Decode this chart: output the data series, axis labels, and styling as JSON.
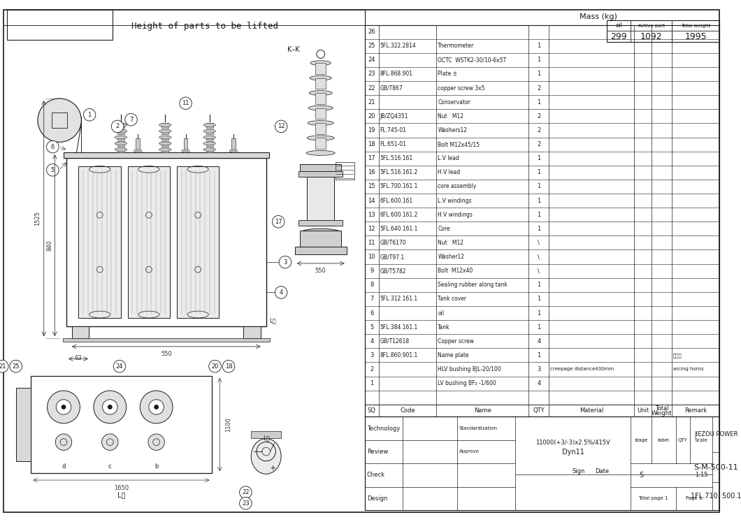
{
  "line_color": "#1a1a1a",
  "title": "Height of parts to be lifted",
  "mass_title": "Mass (kg)",
  "mass_headers": [
    "oil",
    "Active part",
    "Total weight"
  ],
  "mass_values": [
    "299",
    "1092",
    "1995"
  ],
  "bom_rows": [
    {
      "sq": "26",
      "code": "",
      "name": "",
      "qty": "",
      "material": ""
    },
    {
      "sq": "25",
      "code": "5FL.322.2814",
      "name": "Thermometer",
      "qty": "1",
      "material": ""
    },
    {
      "sq": "24",
      "code": "",
      "name": "OCTC  WSTK2-30/10-6x5T",
      "qty": "1",
      "material": ""
    },
    {
      "sq": "23",
      "code": "8FL.868.901",
      "name": "Plate ±",
      "qty": "1",
      "material": ""
    },
    {
      "sq": "22",
      "code": "GB/T867",
      "name": "copper screw 3x5",
      "qty": "2",
      "material": ""
    },
    {
      "sq": "21",
      "code": "",
      "name": "Conservator",
      "qty": "1",
      "material": ""
    },
    {
      "sq": "20",
      "code": "JB/ZQ4351",
      "name": "Nut   M12",
      "qty": "2",
      "material": ""
    },
    {
      "sq": "19",
      "code": "FL.745-01",
      "name": "Washers12",
      "qty": "2",
      "material": ""
    },
    {
      "sq": "18",
      "code": "FL.651-01",
      "name": "Bolt M12x45/15",
      "qty": "2",
      "material": ""
    },
    {
      "sq": "17",
      "code": "5FL.516.161",
      "name": "L.V lead",
      "qty": "1",
      "material": ""
    },
    {
      "sq": "16",
      "code": "5FL.516.161.2",
      "name": "H.V lead",
      "qty": "1",
      "material": ""
    },
    {
      "sq": "15",
      "code": "5FL.700.161.1",
      "name": "core assembly",
      "qty": "1",
      "material": ""
    },
    {
      "sq": "14",
      "code": "6FL.600.161",
      "name": "L.V windings",
      "qty": "1",
      "material": ""
    },
    {
      "sq": "13",
      "code": "6FL.600.161.2",
      "name": "H.V windings",
      "qty": "1",
      "material": ""
    },
    {
      "sq": "12",
      "code": "5FL.640.161.1",
      "name": "Core",
      "qty": "1",
      "material": ""
    },
    {
      "sq": "11",
      "code": "GB/T6170",
      "name": "Nut   M12",
      "qty": "\\",
      "material": ""
    },
    {
      "sq": "10",
      "code": "GB/T97.1",
      "name": "Washer12",
      "qty": "\\",
      "material": ""
    },
    {
      "sq": "9",
      "code": "GB/T5782",
      "name": "Bolt  M12x40",
      "qty": "\\",
      "material": ""
    },
    {
      "sq": "8",
      "code": "",
      "name": "Sealing rubber along tank",
      "qty": "1",
      "material": ""
    },
    {
      "sq": "7",
      "code": "5FL.312.161.1",
      "name": "Tank cover",
      "qty": "1",
      "material": ""
    },
    {
      "sq": "6",
      "code": "",
      "name": "oil",
      "qty": "1",
      "material": ""
    },
    {
      "sq": "5",
      "code": "5FL.384.161.1",
      "name": "Tank",
      "qty": "1",
      "material": ""
    },
    {
      "sq": "4",
      "code": "GB/T12618",
      "name": "Copper screw",
      "qty": "4",
      "material": ""
    },
    {
      "sq": "3",
      "code": "8FL.860.901.1",
      "name": "Name plate",
      "qty": "1",
      "material": "",
      "remark": "通用件"
    },
    {
      "sq": "2",
      "code": "",
      "name": "HLV bushing BJL-20/100",
      "qty": "3",
      "material": "creepage distance430mm",
      "remark": "arcing horns"
    },
    {
      "sq": "1",
      "code": "",
      "name": "LV bushing BF₂ -1/600",
      "qty": "4",
      "material": ""
    }
  ],
  "voltage": "11000(+3/-3)x2.5%/415V",
  "connection": "Dyn11",
  "company": "JIEZOU POWER",
  "drawing_no": "S-M-500-11",
  "part_no": "1FL.710. 500.1",
  "scale": "1:15",
  "stage_label": "S",
  "footer_rows": [
    "Design",
    "Check",
    "Review",
    "Technology"
  ],
  "footer_std": "Standardization",
  "footer_appr": "Approve"
}
